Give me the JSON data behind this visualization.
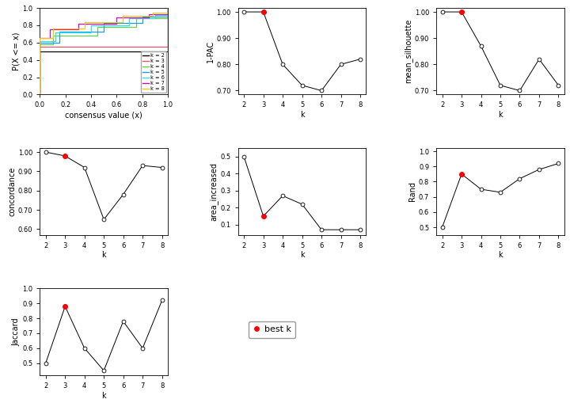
{
  "k_values": [
    2,
    3,
    4,
    5,
    6,
    7,
    8
  ],
  "best_k": 3,
  "pac_1minus": [
    1.0,
    1.0,
    0.8,
    0.72,
    0.7,
    0.8,
    0.82
  ],
  "mean_silhouette": [
    1.0,
    1.0,
    0.87,
    0.72,
    0.7,
    0.82,
    0.72
  ],
  "concordance": [
    1.0,
    0.98,
    0.92,
    0.65,
    0.78,
    0.93,
    0.92
  ],
  "area_increased": [
    0.5,
    0.15,
    0.27,
    0.22,
    0.07,
    0.07,
    0.07
  ],
  "rand": [
    0.5,
    0.85,
    0.75,
    0.73,
    0.82,
    0.88,
    0.92
  ],
  "jaccard": [
    0.5,
    0.88,
    0.6,
    0.45,
    0.78,
    0.6,
    0.92
  ],
  "legend_labels": [
    "k = 2",
    "k = 3",
    "k = 4",
    "k = 5",
    "k = 6",
    "k = 7",
    "k = 8"
  ],
  "ecdf_colors": [
    "#000000",
    "#DF536B",
    "#61D04F",
    "#2297E6",
    "#28E2E5",
    "#CD0BBC",
    "#F5C710"
  ],
  "title_fontsize": 8,
  "axis_fontsize": 7,
  "tick_fontsize": 6
}
